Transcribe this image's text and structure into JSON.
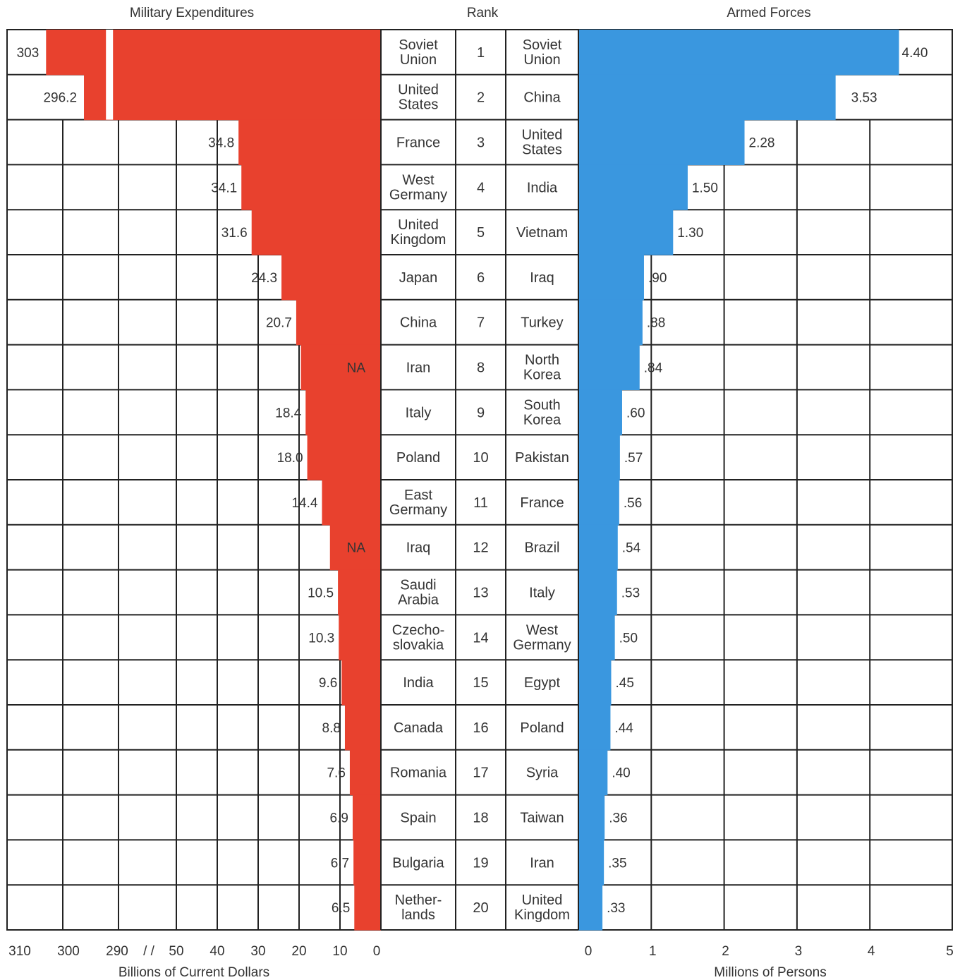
{
  "chart_data": {
    "type": "bar",
    "headers": {
      "left": "Military Expenditures",
      "center": "Rank",
      "right": "Armed Forces"
    },
    "ranks": [
      "1",
      "2",
      "3",
      "4",
      "5",
      "6",
      "7",
      "8",
      "9",
      "10",
      "11",
      "12",
      "13",
      "14",
      "15",
      "16",
      "17",
      "18",
      "19",
      "20"
    ],
    "series": [
      {
        "name": "Military Expenditures",
        "color": "#e8412e",
        "countries": [
          "Soviet Union",
          "United States",
          "France",
          "West Germany",
          "United Kingdom",
          "Japan",
          "China",
          "Iran",
          "Italy",
          "Poland",
          "East Germany",
          "Iraq",
          "Saudi Arabia",
          "Czecho-slovakia",
          "India",
          "Canada",
          "Romania",
          "Spain",
          "Bulgaria",
          "Nether-lands"
        ],
        "values": [
          303,
          296.2,
          34.8,
          34.1,
          31.6,
          24.3,
          20.7,
          null,
          18.4,
          18.0,
          14.4,
          null,
          10.5,
          10.3,
          9.6,
          8.8,
          7.6,
          6.9,
          6.7,
          6.5
        ],
        "labels": [
          "303",
          "296.2",
          "34.8",
          "34.1",
          "31.6",
          "24.3",
          "20.7",
          "NA",
          "18.4",
          "18.0",
          "14.4",
          "NA",
          "10.5",
          "10.3",
          "9.6",
          "8.8",
          "7.6",
          "6.9",
          "6.7",
          "6.5"
        ],
        "xlabel": "Billions of Current Dollars",
        "axis_ticks": [
          "310",
          "300",
          "290",
          "/ /",
          "50",
          "40",
          "30",
          "20",
          "10",
          "0"
        ],
        "axis_break": [
          50,
          290
        ],
        "xlim": [
          0,
          310
        ]
      },
      {
        "name": "Armed Forces",
        "color": "#3a97df",
        "countries": [
          "Soviet Union",
          "China",
          "United States",
          "India",
          "Vietnam",
          "Iraq",
          "Turkey",
          "North Korea",
          "South Korea",
          "Pakistan",
          "France",
          "Brazil",
          "Italy",
          "West Germany",
          "Egypt",
          "Poland",
          "Syria",
          "Taiwan",
          "Iran",
          "United Kingdom"
        ],
        "values": [
          4.4,
          3.53,
          2.28,
          1.5,
          1.3,
          0.9,
          0.88,
          0.84,
          0.6,
          0.57,
          0.56,
          0.54,
          0.53,
          0.5,
          0.45,
          0.44,
          0.4,
          0.36,
          0.35,
          0.33
        ],
        "labels": [
          "4.40",
          "3.53",
          "2.28",
          "1.50",
          "1.30",
          ".90",
          ".88",
          ".84",
          ".60",
          ".57",
          ".56",
          ".54",
          ".53",
          ".50",
          ".45",
          ".44",
          ".40",
          ".36",
          ".35",
          ".33"
        ],
        "xlabel": "Millions of Persons",
        "axis_ticks": [
          "0",
          "1",
          "2",
          "3",
          "4",
          "5"
        ],
        "xlim": [
          0,
          5
        ]
      }
    ]
  }
}
